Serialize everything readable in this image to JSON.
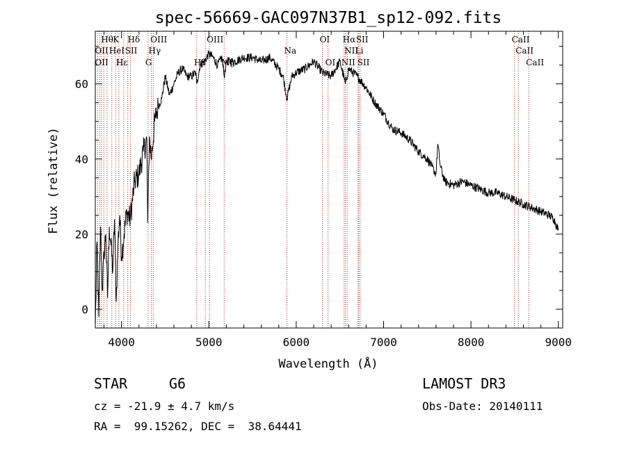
{
  "chart_data": {
    "type": "line",
    "title": "spec-56669-GAC097N37B1_sp12-092.fits",
    "xlabel": "Wavelength (Å)",
    "ylabel": "Flux (relative)",
    "xlim": [
      3700,
      9050
    ],
    "ylim": [
      -5,
      74
    ],
    "xticks": [
      4000,
      5000,
      6000,
      7000,
      8000,
      9000
    ],
    "yticks": [
      0,
      20,
      40,
      60
    ],
    "xtick_labels": [
      "4000",
      "5000",
      "6000",
      "7000",
      "8000",
      "9000"
    ],
    "ytick_labels": [
      "0",
      "20",
      "40",
      "60"
    ],
    "series": [
      {
        "name": "spectrum",
        "x": [
          3700,
          3720,
          3740,
          3760,
          3780,
          3800,
          3820,
          3840,
          3860,
          3880,
          3900,
          3920,
          3940,
          3960,
          3980,
          4000,
          4030,
          4060,
          4100,
          4150,
          4200,
          4250,
          4290,
          4300,
          4320,
          4340,
          4380,
          4420,
          4460,
          4500,
          4550,
          4600,
          4650,
          4700,
          4750,
          4800,
          4850,
          4861,
          4900,
          4950,
          5000,
          5050,
          5100,
          5150,
          5175,
          5200,
          5300,
          5400,
          5500,
          5600,
          5700,
          5800,
          5850,
          5893,
          5950,
          6000,
          6100,
          6200,
          6300,
          6400,
          6500,
          6563,
          6600,
          6700,
          6800,
          6900,
          7000,
          7100,
          7200,
          7300,
          7400,
          7500,
          7550,
          7600,
          7620,
          7650,
          7700,
          7800,
          7900,
          8000,
          8100,
          8200,
          8300,
          8400,
          8500,
          8600,
          8700,
          8800,
          8900,
          8950,
          9000
        ],
        "y": [
          -5,
          18,
          -2,
          22,
          5,
          15,
          20,
          3,
          22,
          17,
          10,
          24,
          2,
          18,
          25,
          14,
          20,
          26,
          24,
          34,
          36,
          42,
          45,
          23,
          46,
          40,
          50,
          54,
          56,
          62,
          57,
          60,
          63,
          64,
          62,
          62,
          63,
          60,
          65,
          66,
          68,
          67,
          65,
          67,
          62,
          66,
          66,
          67,
          67,
          66,
          67,
          64,
          62,
          56,
          62,
          63,
          64,
          66,
          63,
          62,
          66,
          60,
          64,
          62,
          59,
          55,
          52,
          48,
          47,
          45,
          42,
          40,
          38,
          36,
          44,
          38,
          34,
          33,
          34,
          33,
          32,
          31,
          31,
          30,
          29,
          28,
          27,
          26,
          25,
          24,
          21
        ]
      }
    ],
    "line_markers": {
      "wavelengths": [
        3727,
        3750,
        3771,
        3798,
        3835,
        3889,
        3933,
        3970,
        4026,
        4072,
        4102,
        4304,
        4341,
        4363,
        4861,
        4959,
        5007,
        5175,
        5893,
        6300,
        6364,
        6548,
        6563,
        6583,
        6707,
        6716,
        6731,
        8498,
        8542,
        8662
      ],
      "labels": [
        {
          "text": "Hθ",
          "wl": 3798,
          "row": 1
        },
        {
          "text": "K",
          "wl": 3933,
          "row": 1
        },
        {
          "text": "Hδ",
          "wl": 4102,
          "row": 1
        },
        {
          "text": "OIII",
          "wl": 4363,
          "row": 1
        },
        {
          "text": "OIII",
          "wl": 5007,
          "row": 1
        },
        {
          "text": "OI",
          "wl": 6300,
          "row": 1
        },
        {
          "text": "Hα",
          "wl": 6563,
          "row": 1
        },
        {
          "text": "SII",
          "wl": 6716,
          "row": 1
        },
        {
          "text": "CaII",
          "wl": 8498,
          "row": 1
        },
        {
          "text": "OII",
          "wl": 3727,
          "row": 2
        },
        {
          "text": "HeI",
          "wl": 3889,
          "row": 2
        },
        {
          "text": "SII",
          "wl": 4072,
          "row": 2
        },
        {
          "text": "Hγ",
          "wl": 4341,
          "row": 2
        },
        {
          "text": "Na",
          "wl": 5893,
          "row": 2
        },
        {
          "text": "NII",
          "wl": 6583,
          "row": 2
        },
        {
          "text": "Li",
          "wl": 6707,
          "row": 2
        },
        {
          "text": "CaII",
          "wl": 8542,
          "row": 2
        },
        {
          "text": "OII",
          "wl": 3727,
          "row": 3
        },
        {
          "text": "Hε",
          "wl": 3970,
          "row": 3
        },
        {
          "text": "H",
          "wl": 3970,
          "row": 3
        },
        {
          "text": "G",
          "wl": 4304,
          "row": 3
        },
        {
          "text": "Hβ",
          "wl": 4861,
          "row": 3
        },
        {
          "text": "Mg",
          "wl": 5175,
          "row": 3
        },
        {
          "text": "OI",
          "wl": 6364,
          "row": 3
        },
        {
          "text": "NII",
          "wl": 6548,
          "row": 3
        },
        {
          "text": "SII",
          "wl": 6731,
          "row": 3
        },
        {
          "text": "CaII",
          "wl": 8662,
          "row": 3
        }
      ]
    },
    "colors": {
      "spectrum": "#000000",
      "line_marker": "#b22222",
      "axes": "#000000"
    }
  },
  "info": {
    "object_class": "STAR",
    "subclass": "G6",
    "survey": "LAMOST DR3",
    "redshift": "cz = -21.9 ± 4.7 km/s",
    "obs_date": "Obs-Date: 20140111",
    "coords": "RA =  99.15262, DEC =  38.64441"
  }
}
